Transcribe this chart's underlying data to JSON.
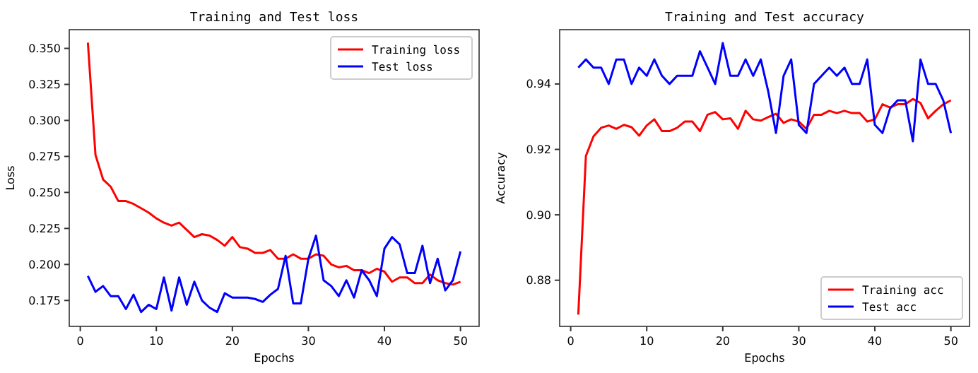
{
  "chart_data": [
    {
      "type": "line",
      "title": "Training and Test loss",
      "xlabel": "Epochs",
      "ylabel": "Loss",
      "x": [
        1,
        2,
        3,
        4,
        5,
        6,
        7,
        8,
        9,
        10,
        11,
        12,
        13,
        14,
        15,
        16,
        17,
        18,
        19,
        20,
        21,
        22,
        23,
        24,
        25,
        26,
        27,
        28,
        29,
        30,
        31,
        32,
        33,
        34,
        35,
        36,
        37,
        38,
        39,
        40,
        41,
        42,
        43,
        44,
        45,
        46,
        47,
        48,
        49,
        50
      ],
      "xlim": [
        -1.45,
        52.45
      ],
      "xticks": [
        0,
        10,
        20,
        30,
        40,
        50
      ],
      "ylim": [
        0.157,
        0.363
      ],
      "yticks": [
        {
          "value": 0.175,
          "label": "0.175"
        },
        {
          "value": 0.2,
          "label": "0.200"
        },
        {
          "value": 0.225,
          "label": "0.225"
        },
        {
          "value": 0.25,
          "label": "0.250"
        },
        {
          "value": 0.275,
          "label": "0.275"
        },
        {
          "value": 0.3,
          "label": "0.300"
        },
        {
          "value": 0.325,
          "label": "0.325"
        },
        {
          "value": 0.35,
          "label": "0.350"
        }
      ],
      "legend": "top right",
      "series": [
        {
          "name": "Training loss",
          "color": "#ff0000",
          "values": [
            0.354,
            0.276,
            0.259,
            0.254,
            0.244,
            0.244,
            0.242,
            0.239,
            0.236,
            0.232,
            0.229,
            0.227,
            0.229,
            0.224,
            0.219,
            0.221,
            0.22,
            0.217,
            0.213,
            0.219,
            0.212,
            0.211,
            0.208,
            0.208,
            0.21,
            0.204,
            0.204,
            0.207,
            0.204,
            0.204,
            0.207,
            0.206,
            0.2,
            0.198,
            0.199,
            0.196,
            0.196,
            0.194,
            0.197,
            0.195,
            0.188,
            0.191,
            0.191,
            0.187,
            0.187,
            0.193,
            0.189,
            0.187,
            0.186,
            0.188
          ]
        },
        {
          "name": "Test loss",
          "color": "#0000ff",
          "values": [
            0.192,
            0.181,
            0.185,
            0.178,
            0.178,
            0.169,
            0.179,
            0.167,
            0.172,
            0.169,
            0.191,
            0.168,
            0.191,
            0.172,
            0.188,
            0.175,
            0.17,
            0.167,
            0.18,
            0.177,
            0.177,
            0.177,
            0.176,
            0.174,
            0.179,
            0.183,
            0.206,
            0.173,
            0.173,
            0.204,
            0.22,
            0.189,
            0.185,
            0.178,
            0.189,
            0.177,
            0.196,
            0.189,
            0.178,
            0.211,
            0.219,
            0.214,
            0.194,
            0.194,
            0.213,
            0.187,
            0.204,
            0.182,
            0.189,
            0.209
          ]
        }
      ]
    },
    {
      "type": "line",
      "title": "Training and Test accuracy",
      "xlabel": "Epochs",
      "ylabel": "Accuracy",
      "x": [
        1,
        2,
        3,
        4,
        5,
        6,
        7,
        8,
        9,
        10,
        11,
        12,
        13,
        14,
        15,
        16,
        17,
        18,
        19,
        20,
        21,
        22,
        23,
        24,
        25,
        26,
        27,
        28,
        29,
        30,
        31,
        32,
        33,
        34,
        35,
        36,
        37,
        38,
        39,
        40,
        41,
        42,
        43,
        44,
        45,
        46,
        47,
        48,
        49,
        50
      ],
      "xlim": [
        -1.45,
        52.45
      ],
      "xticks": [
        0,
        10,
        20,
        30,
        40,
        50
      ],
      "ylim": [
        0.8659,
        0.9566
      ],
      "yticks": [
        0.88,
        {
          "value": 0.9,
          "label": "0.90"
        },
        0.92,
        0.94
      ],
      "legend": "bottom right",
      "series": [
        {
          "name": "Training acc",
          "color": "#ff0000",
          "values": [
            0.8695,
            0.918,
            0.924,
            0.9266,
            0.9273,
            0.9263,
            0.9275,
            0.9268,
            0.9242,
            0.9273,
            0.9292,
            0.9256,
            0.9256,
            0.9266,
            0.9285,
            0.9285,
            0.9256,
            0.9306,
            0.9314,
            0.9292,
            0.9295,
            0.9263,
            0.9318,
            0.9292,
            0.9288,
            0.9299,
            0.9309,
            0.9281,
            0.9292,
            0.9285,
            0.9263,
            0.9306,
            0.9306,
            0.9318,
            0.9311,
            0.9318,
            0.9311,
            0.9311,
            0.9285,
            0.9292,
            0.9338,
            0.9328,
            0.9338,
            0.9338,
            0.9354,
            0.9342,
            0.9295,
            0.9318,
            0.9338,
            0.935
          ]
        },
        {
          "name": "Test acc",
          "color": "#0000ff",
          "values": [
            0.945,
            0.9475,
            0.945,
            0.945,
            0.94,
            0.9475,
            0.9475,
            0.94,
            0.945,
            0.9425,
            0.9475,
            0.9425,
            0.94,
            0.9425,
            0.9425,
            0.9425,
            0.95,
            0.945,
            0.94,
            0.9525,
            0.9425,
            0.9425,
            0.9475,
            0.9425,
            0.9475,
            0.9375,
            0.925,
            0.9425,
            0.9475,
            0.9275,
            0.925,
            0.94,
            0.9425,
            0.945,
            0.9425,
            0.945,
            0.94,
            0.94,
            0.9475,
            0.9275,
            0.925,
            0.9325,
            0.935,
            0.935,
            0.9225,
            0.9475,
            0.94,
            0.94,
            0.935,
            0.925
          ]
        }
      ]
    }
  ]
}
